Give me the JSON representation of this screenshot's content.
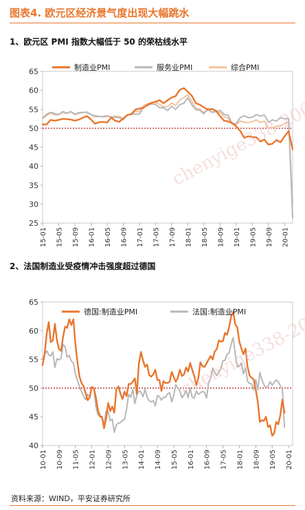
{
  "figure": {
    "title": "图表4.  欧元区经济景气度出现大幅跳水",
    "source": "资料来源：WIND，平安证券研究所"
  },
  "watermark": "chenyige338-2006",
  "colors": {
    "accent": "#e8762d",
    "manufacturing": "#e8762d",
    "services": "#b7b7b7",
    "composite": "#f4c39d",
    "reference": "#b01c1c",
    "france": "#b7b7b7",
    "germany": "#e8762d"
  },
  "chart_data": [
    {
      "type": "line",
      "subtitle": "1、欧元区 PMI 指数大幅低于 50 的荣枯线水平",
      "x_ticks": [
        "15-01",
        "15-05",
        "15-09",
        "16-01",
        "16-05",
        "16-09",
        "17-01",
        "17-05",
        "17-09",
        "18-01",
        "18-05",
        "18-09",
        "19-01",
        "19-05",
        "19-09",
        "20-01"
      ],
      "x_start": "15-01",
      "x_end": "20-03",
      "ylim": [
        25,
        65
      ],
      "y_ticks": [
        25,
        30,
        35,
        40,
        45,
        50,
        55,
        60,
        65
      ],
      "reference_line": 50,
      "legend_position": "top",
      "series": [
        {
          "name": "制造业PMI",
          "color_key": "manufacturing",
          "values": [
            51.0,
            51.0,
            52.2,
            52.0,
            52.2,
            52.5,
            52.4,
            52.3,
            52.0,
            52.3,
            52.8,
            53.2,
            52.3,
            51.2,
            51.6,
            51.7,
            51.5,
            52.8,
            52.0,
            51.7,
            52.6,
            53.5,
            53.7,
            54.9,
            55.2,
            55.4,
            56.2,
            56.7,
            57.0,
            57.4,
            56.6,
            57.4,
            58.1,
            58.5,
            60.1,
            60.6,
            59.6,
            58.6,
            56.6,
            56.2,
            55.5,
            54.9,
            55.1,
            54.6,
            53.2,
            52.0,
            51.8,
            51.4,
            50.5,
            49.3,
            47.5,
            47.9,
            47.7,
            47.6,
            46.5,
            47.0,
            45.7,
            45.9,
            46.9,
            46.3,
            47.9,
            49.2,
            44.5
          ]
        },
        {
          "name": "服务业PMI",
          "color_key": "services",
          "values": [
            52.7,
            53.7,
            54.2,
            53.9,
            53.6,
            54.4,
            54.0,
            54.4,
            53.7,
            54.1,
            54.2,
            54.2,
            53.6,
            53.3,
            53.1,
            53.1,
            53.3,
            52.8,
            52.9,
            52.8,
            52.2,
            53.5,
            53.8,
            53.7,
            53.7,
            55.5,
            56.0,
            56.4,
            56.3,
            55.4,
            55.4,
            54.7,
            55.8,
            55.0,
            56.2,
            56.6,
            58.0,
            56.2,
            54.9,
            54.7,
            53.8,
            55.2,
            54.2,
            54.4,
            54.7,
            53.7,
            53.4,
            51.2,
            51.2,
            52.8,
            53.3,
            52.8,
            52.9,
            53.6,
            53.2,
            53.5,
            51.6,
            52.2,
            51.9,
            52.8,
            52.5,
            52.6,
            26.4
          ]
        },
        {
          "name": "综合PMI",
          "color_key": "composite",
          "values": [
            52.6,
            53.3,
            54.0,
            53.5,
            53.6,
            54.2,
            53.9,
            54.3,
            53.6,
            53.9,
            54.2,
            54.3,
            53.6,
            53.0,
            53.1,
            53.0,
            53.1,
            53.1,
            53.2,
            53.1,
            52.6,
            53.3,
            53.9,
            54.4,
            54.4,
            56.0,
            56.4,
            56.8,
            56.8,
            56.3,
            55.7,
            55.7,
            56.7,
            56.0,
            57.5,
            58.1,
            58.8,
            57.1,
            55.2,
            55.1,
            54.1,
            54.9,
            54.3,
            54.5,
            54.1,
            53.1,
            52.7,
            51.1,
            51.0,
            51.9,
            51.6,
            51.5,
            51.8,
            52.2,
            51.5,
            51.9,
            50.1,
            50.1,
            50.6,
            50.6,
            51.3,
            51.6,
            29.7
          ]
        }
      ]
    },
    {
      "type": "line",
      "subtitle": "2、法国制造业受疫情冲击强度超过德国",
      "x_ticks": [
        "10-01",
        "10-09",
        "11-05",
        "12-01",
        "12-09",
        "13-05",
        "14-01",
        "14-09",
        "15-05",
        "16-01",
        "16-09",
        "17-05",
        "18-01",
        "18-09",
        "19-05",
        "20-01"
      ],
      "x_start": "10-01",
      "x_end": "20-03",
      "ylim": [
        40,
        65
      ],
      "y_ticks": [
        40,
        45,
        50,
        55,
        60,
        65
      ],
      "reference_line": 50,
      "legend_position": "top",
      "series": [
        {
          "name": "德国:制造业PMI",
          "color_key": "germany",
          "values": [
            54.0,
            56.0,
            59.5,
            61.5,
            58.0,
            58.3,
            61.2,
            58.3,
            56.8,
            56.5,
            58.9,
            60.7,
            60.5,
            62.0,
            61.0,
            62.0,
            57.7,
            54.6,
            52.0,
            50.9,
            50.3,
            49.1,
            47.9,
            48.4,
            50.2,
            50.0,
            48.4,
            46.2,
            45.0,
            45.0,
            43.0,
            44.7,
            47.4,
            46.0,
            46.8,
            45.7,
            49.8,
            50.3,
            49.0,
            48.1,
            49.4,
            48.6,
            50.7,
            50.7,
            51.1,
            51.7,
            49.0,
            54.3,
            56.3,
            54.8,
            53.7,
            54.1,
            52.3,
            52.0,
            52.4,
            53.2,
            51.4,
            51.4,
            49.5,
            51.2,
            50.9,
            50.9,
            51.1,
            52.8,
            51.9,
            51.1,
            51.8,
            53.2,
            52.1,
            52.4,
            53.6,
            52.9,
            54.4,
            53.2,
            52.1,
            50.5,
            51.8,
            54.5,
            53.8,
            53.7,
            54.3,
            55.0,
            55.6,
            55.0,
            56.4,
            56.8,
            58.3,
            58.1,
            58.2,
            59.6,
            59.3,
            60.6,
            62.5,
            63.3,
            61.1,
            60.6,
            58.1,
            56.9,
            55.9,
            56.9,
            53.7,
            52.2,
            51.8,
            51.5,
            49.7,
            47.6,
            44.1,
            44.4,
            44.3,
            45.0,
            43.2,
            43.5,
            41.7,
            42.1,
            44.1,
            43.7,
            45.3,
            48.0,
            45.7
          ]
        },
        {
          "name": "法国:制造业PMI",
          "color_key": "france",
          "values": [
            55.2,
            55.8,
            56.5,
            55.8,
            55.6,
            56.3,
            53.6,
            55.1,
            54.9,
            55.2,
            57.6,
            57.2,
            55.4,
            55.7,
            54.7,
            54.4,
            52.5,
            51.3,
            50.3,
            49.4,
            48.6,
            48.0,
            48.9,
            48.5,
            50.0,
            50.0,
            46.8,
            45.3,
            45.4,
            44.7,
            43.7,
            46.0,
            45.9,
            44.3,
            44.6,
            42.3,
            43.6,
            43.9,
            44.0,
            44.4,
            44.5,
            46.4,
            48.9,
            48.4,
            49.8,
            47.3,
            48.8,
            49.5,
            49.3,
            48.5,
            49.8,
            48.4,
            47.8,
            47.6,
            47.8,
            46.9,
            48.7,
            48.5,
            47.9,
            48.4,
            48.4,
            49.0,
            49.2,
            47.6,
            48.8,
            50.6,
            50.0,
            49.5,
            48.3,
            48.8,
            49.6,
            48.3,
            50.0,
            48.4,
            48.3,
            49.5,
            48.9,
            49.2,
            49.4,
            49.3,
            48.3,
            51.0,
            51.7,
            53.5,
            52.7,
            52.2,
            52.8,
            53.4,
            54.8,
            54.8,
            55.9,
            56.1,
            57.7,
            58.8,
            55.9,
            53.7,
            53.8,
            54.4,
            52.5,
            53.5,
            51.2,
            50.8,
            50.7,
            49.7,
            51.5,
            49.7,
            52.7,
            51.5,
            50.6,
            50.1,
            50.3,
            51.1,
            50.5,
            51.0,
            51.4,
            51.1,
            50.4,
            49.8,
            43.2
          ]
        }
      ]
    }
  ]
}
